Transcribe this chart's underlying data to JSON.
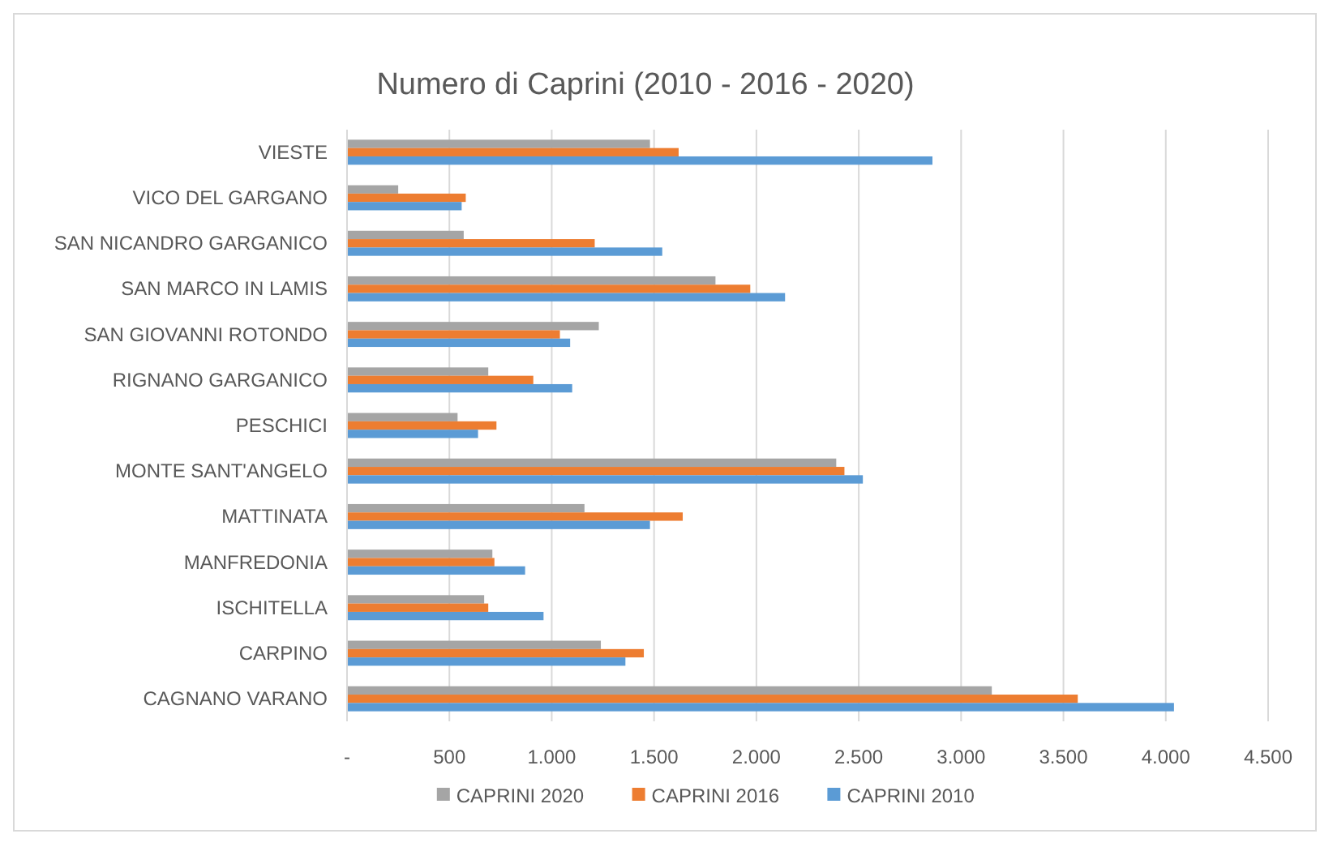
{
  "chart_data": {
    "type": "bar",
    "orientation": "horizontal",
    "title": "Numero di Caprini (2010 - 2016 - 2020)",
    "categories": [
      "VIESTE",
      "VICO DEL GARGANO",
      "SAN NICANDRO GARGANICO",
      "SAN MARCO IN LAMIS",
      "SAN GIOVANNI ROTONDO",
      "RIGNANO GARGANICO",
      "PESCHICI",
      "MONTE SANT'ANGELO",
      "MATTINATA",
      "MANFREDONIA",
      "ISCHITELLA",
      "CARPINO",
      "CAGNANO VARANO"
    ],
    "series": [
      {
        "name": "CAPRINI 2020",
        "color": "#a5a5a5",
        "values": [
          1480,
          250,
          570,
          1800,
          1230,
          690,
          540,
          2390,
          1160,
          710,
          670,
          1240,
          3150
        ]
      },
      {
        "name": "CAPRINI 2016",
        "color": "#ed7d31",
        "values": [
          1620,
          580,
          1210,
          1970,
          1040,
          910,
          730,
          2430,
          1640,
          720,
          690,
          1450,
          3570
        ]
      },
      {
        "name": "CAPRINI 2010",
        "color": "#5b9bd5",
        "values": [
          2860,
          560,
          1540,
          2140,
          1090,
          1100,
          640,
          2520,
          1480,
          870,
          960,
          1360,
          4040
        ]
      }
    ],
    "xlim": [
      0,
      4500
    ],
    "xticks": [
      {
        "value": 0,
        "label": "-"
      },
      {
        "value": 500,
        "label": "500"
      },
      {
        "value": 1000,
        "label": "1.000"
      },
      {
        "value": 1500,
        "label": "1.500"
      },
      {
        "value": 2000,
        "label": "2.000"
      },
      {
        "value": 2500,
        "label": "2.500"
      },
      {
        "value": 3000,
        "label": "3.000"
      },
      {
        "value": 3500,
        "label": "3.500"
      },
      {
        "value": 4000,
        "label": "4.000"
      },
      {
        "value": 4500,
        "label": "4.500"
      }
    ],
    "grid": "x",
    "legend": "bottom"
  }
}
